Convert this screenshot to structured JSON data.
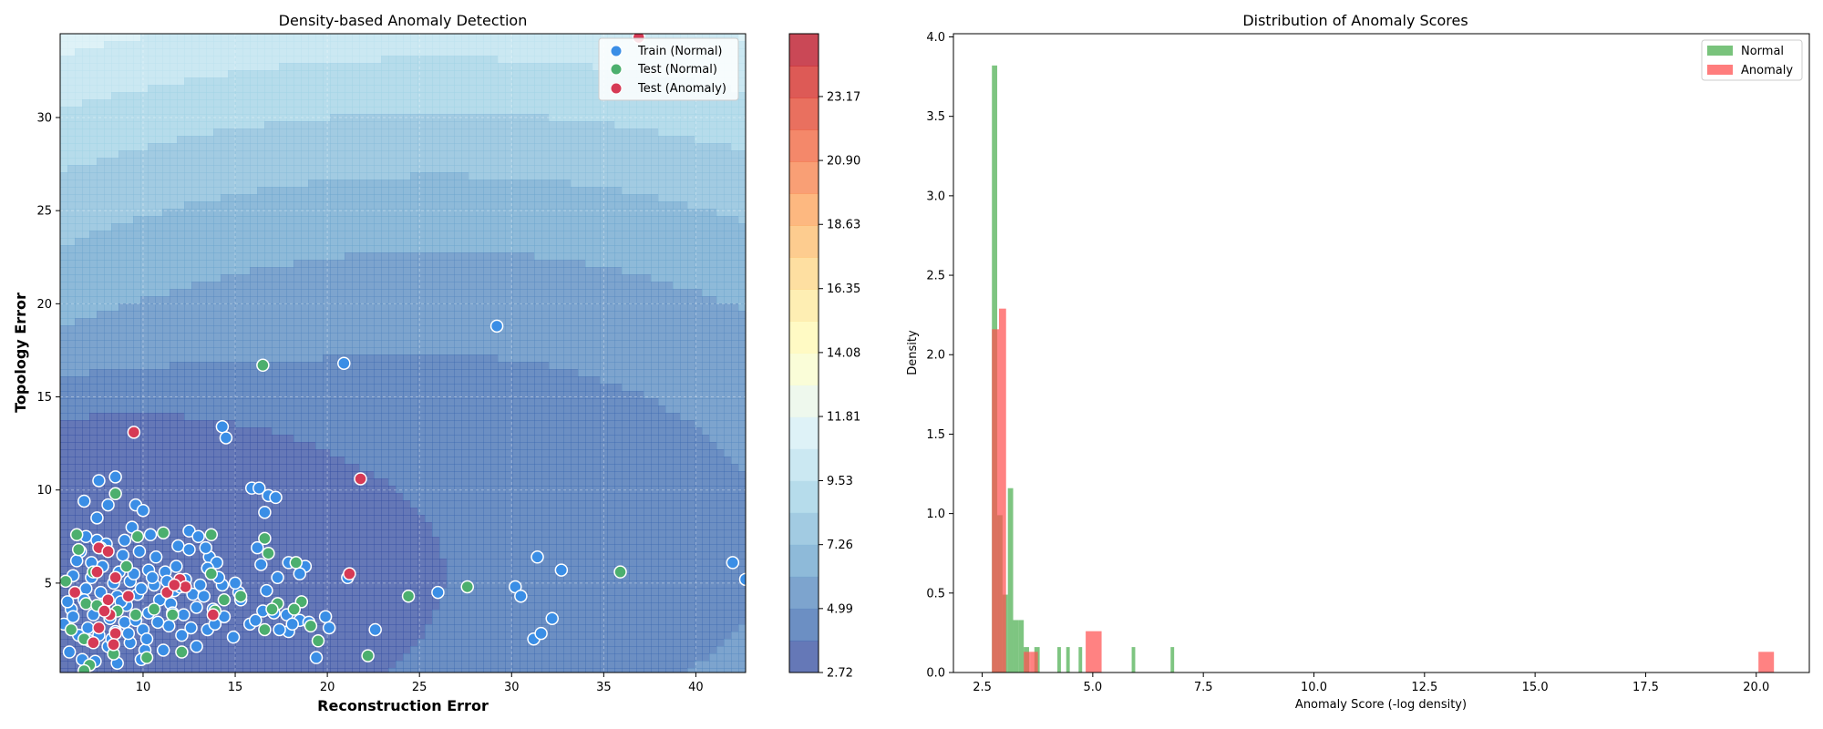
{
  "chart_data": [
    {
      "type": "scatter",
      "title": "Density-based Anomaly Detection",
      "xlabel": "Reconstruction Error",
      "ylabel": "Topology Error",
      "xlim": [
        5.5,
        42.7
      ],
      "ylim": [
        0.2,
        34.5
      ],
      "xticks": [
        10,
        15,
        20,
        25,
        30,
        35,
        40
      ],
      "yticks": [
        5,
        10,
        15,
        20,
        25,
        30
      ],
      "grid": true,
      "legend_position": "upper right",
      "background": "filled density contours (-log density)",
      "colorbar": {
        "ticks": [
          "2.72",
          "4.99",
          "7.26",
          "9.53",
          "11.81",
          "14.08",
          "16.35",
          "18.63",
          "20.90",
          "23.17"
        ],
        "range": [
          2.72,
          25.4
        ],
        "colormap": "RdYlBu reversed"
      },
      "series": [
        {
          "name": "Train (Normal)",
          "color": "#3a8ee6",
          "points": [
            [
              29.2,
              18.8
            ],
            [
              20.9,
              16.8
            ],
            [
              14.3,
              13.4
            ],
            [
              14.5,
              12.8
            ],
            [
              8.5,
              10.7
            ],
            [
              7.6,
              10.5
            ],
            [
              15.9,
              10.1
            ],
            [
              16.3,
              10.1
            ],
            [
              16.8,
              9.7
            ],
            [
              17.2,
              9.6
            ],
            [
              6.8,
              9.4
            ],
            [
              9.6,
              9.2
            ],
            [
              8.1,
              9.2
            ],
            [
              10.0,
              8.9
            ],
            [
              16.6,
              8.8
            ],
            [
              7.5,
              8.5
            ],
            [
              9.4,
              8.0
            ],
            [
              12.5,
              7.8
            ],
            [
              13.0,
              7.5
            ],
            [
              6.9,
              7.5
            ],
            [
              7.5,
              7.3
            ],
            [
              8.0,
              7.1
            ],
            [
              11.9,
              7.0
            ],
            [
              16.2,
              6.9
            ],
            [
              12.5,
              6.8
            ],
            [
              6.6,
              6.7
            ],
            [
              10.7,
              6.4
            ],
            [
              13.6,
              6.4
            ],
            [
              14.0,
              6.1
            ],
            [
              31.4,
              6.4
            ],
            [
              42.0,
              6.1
            ],
            [
              42.7,
              5.2
            ],
            [
              16.4,
              6.0
            ],
            [
              17.9,
              6.1
            ],
            [
              18.8,
              5.9
            ],
            [
              32.7,
              5.7
            ],
            [
              18.5,
              5.5
            ],
            [
              17.3,
              5.3
            ],
            [
              21.1,
              5.3
            ],
            [
              30.2,
              4.8
            ],
            [
              30.5,
              4.3
            ],
            [
              26.0,
              4.5
            ],
            [
              14.3,
              4.9
            ],
            [
              10.3,
              5.7
            ],
            [
              11.2,
              5.6
            ],
            [
              6.2,
              5.4
            ],
            [
              7.2,
              5.3
            ],
            [
              8.4,
              5.0
            ],
            [
              9.3,
              5.1
            ],
            [
              10.6,
              4.9
            ],
            [
              11.7,
              4.6
            ],
            [
              12.7,
              4.4
            ],
            [
              13.3,
              4.3
            ],
            [
              15.3,
              4.1
            ],
            [
              6.3,
              4.5
            ],
            [
              6.9,
              4.7
            ],
            [
              7.7,
              4.5
            ],
            [
              8.6,
              4.3
            ],
            [
              9.7,
              4.4
            ],
            [
              10.9,
              4.1
            ],
            [
              11.5,
              3.9
            ],
            [
              12.9,
              3.7
            ],
            [
              13.8,
              3.6
            ],
            [
              16.5,
              3.5
            ],
            [
              17.1,
              3.4
            ],
            [
              17.8,
              3.3
            ],
            [
              18.5,
              3.0
            ],
            [
              19.9,
              3.2
            ],
            [
              20.1,
              2.6
            ],
            [
              22.6,
              2.5
            ],
            [
              32.2,
              3.1
            ],
            [
              31.2,
              2.0
            ],
            [
              31.6,
              2.3
            ],
            [
              14.9,
              2.1
            ],
            [
              13.5,
              2.5
            ],
            [
              12.1,
              2.2
            ],
            [
              10.0,
              2.5
            ],
            [
              9.0,
              2.9
            ],
            [
              8.2,
              3.1
            ],
            [
              7.3,
              3.3
            ],
            [
              6.1,
              3.6
            ],
            [
              5.7,
              2.8
            ],
            [
              6.5,
              2.2
            ],
            [
              7.1,
              1.9
            ],
            [
              8.1,
              1.6
            ],
            [
              9.3,
              1.8
            ],
            [
              10.1,
              1.4
            ],
            [
              11.1,
              1.4
            ],
            [
              12.9,
              1.6
            ],
            [
              17.9,
              2.4
            ],
            [
              19.4,
              1.0
            ],
            [
              19.0,
              2.9
            ],
            [
              6.0,
              1.3
            ],
            [
              6.7,
              0.9
            ],
            [
              7.4,
              0.8
            ],
            [
              8.6,
              0.7
            ],
            [
              9.9,
              0.9
            ],
            [
              11.4,
              2.7
            ],
            [
              12.2,
              3.3
            ],
            [
              14.4,
              3.2
            ],
            [
              15.8,
              2.8
            ],
            [
              9.1,
              3.8
            ],
            [
              10.3,
              3.4
            ],
            [
              8.9,
              6.5
            ],
            [
              9.8,
              6.7
            ],
            [
              7.8,
              5.9
            ],
            [
              6.4,
              6.2
            ],
            [
              12.3,
              5.2
            ],
            [
              13.5,
              5.8
            ],
            [
              15.2,
              4.5
            ],
            [
              16.7,
              4.6
            ],
            [
              7.0,
              2.6
            ],
            [
              8.5,
              2.4
            ],
            [
              9.6,
              3.0
            ],
            [
              10.8,
              2.9
            ],
            [
              11.6,
              3.4
            ],
            [
              6.8,
              4.1
            ],
            [
              7.9,
              3.9
            ],
            [
              8.8,
              4.0
            ],
            [
              9.9,
              4.7
            ],
            [
              10.5,
              5.3
            ],
            [
              11.3,
              5.1
            ],
            [
              12.0,
              4.8
            ],
            [
              13.1,
              4.9
            ],
            [
              14.1,
              5.3
            ],
            [
              15.0,
              5.0
            ],
            [
              6.2,
              3.2
            ],
            [
              5.9,
              4.0
            ],
            [
              7.6,
              2.2
            ],
            [
              8.3,
              2.0
            ],
            [
              9.2,
              2.3
            ],
            [
              10.2,
              2.0
            ],
            [
              12.6,
              2.6
            ],
            [
              13.9,
              2.8
            ],
            [
              16.1,
              3.0
            ],
            [
              17.4,
              2.5
            ],
            [
              18.1,
              2.8
            ],
            [
              7.2,
              6.1
            ],
            [
              8.7,
              5.6
            ],
            [
              9.5,
              5.5
            ],
            [
              11.8,
              5.9
            ],
            [
              13.4,
              6.9
            ],
            [
              10.4,
              7.6
            ],
            [
              9.0,
              7.3
            ]
          ]
        },
        {
          "name": "Test (Normal)",
          "color": "#4caf6e",
          "points": [
            [
              16.5,
              16.7
            ],
            [
              8.5,
              9.8
            ],
            [
              11.1,
              7.7
            ],
            [
              13.7,
              7.6
            ],
            [
              6.4,
              7.6
            ],
            [
              9.7,
              7.5
            ],
            [
              16.6,
              7.4
            ],
            [
              7.7,
              6.9
            ],
            [
              16.8,
              6.6
            ],
            [
              18.3,
              6.1
            ],
            [
              9.1,
              5.9
            ],
            [
              7.3,
              5.6
            ],
            [
              13.7,
              5.5
            ],
            [
              35.9,
              5.6
            ],
            [
              27.6,
              4.8
            ],
            [
              24.4,
              4.3
            ],
            [
              15.3,
              4.3
            ],
            [
              14.4,
              4.1
            ],
            [
              17.3,
              3.9
            ],
            [
              18.6,
              4.0
            ],
            [
              17.0,
              3.6
            ],
            [
              18.2,
              3.6
            ],
            [
              6.9,
              3.9
            ],
            [
              7.5,
              3.8
            ],
            [
              8.6,
              3.5
            ],
            [
              9.6,
              3.3
            ],
            [
              10.6,
              3.6
            ],
            [
              11.6,
              3.3
            ],
            [
              13.9,
              3.5
            ],
            [
              16.6,
              2.5
            ],
            [
              19.1,
              2.7
            ],
            [
              19.5,
              1.9
            ],
            [
              22.2,
              1.1
            ],
            [
              12.1,
              1.3
            ],
            [
              10.2,
              1.0
            ],
            [
              8.4,
              1.2
            ],
            [
              7.1,
              0.6
            ],
            [
              6.8,
              0.3
            ],
            [
              6.1,
              2.5
            ],
            [
              6.8,
              2.0
            ],
            [
              5.8,
              5.1
            ],
            [
              6.5,
              6.8
            ]
          ]
        },
        {
          "name": "Test (Anomaly)",
          "color": "#d63a55",
          "points": [
            [
              36.9,
              34.3
            ],
            [
              9.5,
              13.1
            ],
            [
              21.8,
              10.6
            ],
            [
              21.2,
              5.5
            ],
            [
              7.6,
              6.9
            ],
            [
              8.1,
              6.7
            ],
            [
              7.5,
              5.6
            ],
            [
              8.5,
              5.3
            ],
            [
              12.0,
              5.2
            ],
            [
              12.3,
              4.8
            ],
            [
              11.3,
              4.5
            ],
            [
              9.2,
              4.3
            ],
            [
              8.1,
              4.1
            ],
            [
              6.3,
              4.5
            ],
            [
              8.2,
              3.3
            ],
            [
              7.6,
              2.6
            ],
            [
              8.5,
              2.3
            ],
            [
              7.3,
              1.8
            ],
            [
              8.4,
              1.7
            ],
            [
              7.9,
              3.5
            ],
            [
              13.8,
              3.3
            ],
            [
              11.7,
              4.9
            ]
          ]
        }
      ]
    },
    {
      "type": "histogram",
      "title": "Distribution of Anomaly Scores",
      "xlabel": "Anomaly Score (-log density)",
      "ylabel": "Density",
      "xlim": [
        1.85,
        21.2
      ],
      "ylim": [
        0,
        4.02
      ],
      "xticks": [
        "2.5",
        "5.0",
        "7.5",
        "10.0",
        "12.5",
        "15.0",
        "17.5",
        "20.0"
      ],
      "yticks": [
        "0.0",
        "0.5",
        "1.0",
        "1.5",
        "2.0",
        "2.5",
        "3.0",
        "3.5",
        "4.0"
      ],
      "legend_position": "upper right",
      "series": [
        {
          "name": "Normal",
          "color": "#4caf50",
          "bins": [
            [
              2.72,
              2.84,
              3.82
            ],
            [
              2.84,
              2.96,
              0.99
            ],
            [
              2.96,
              3.08,
              0.49
            ],
            [
              3.08,
              3.2,
              1.16
            ],
            [
              3.2,
              3.32,
              0.33
            ],
            [
              3.32,
              3.44,
              0.33
            ],
            [
              3.44,
              3.56,
              0.16
            ],
            [
              3.68,
              3.8,
              0.16
            ],
            [
              4.2,
              4.28,
              0.16
            ],
            [
              4.4,
              4.48,
              0.16
            ],
            [
              4.68,
              4.76,
              0.16
            ],
            [
              5.88,
              5.96,
              0.16
            ],
            [
              6.76,
              6.84,
              0.16
            ]
          ]
        },
        {
          "name": "Anomaly",
          "color": "#ff5252",
          "bins": [
            [
              2.72,
              2.88,
              2.16
            ],
            [
              2.88,
              3.04,
              2.29
            ],
            [
              3.04,
              3.2,
              0.0
            ],
            [
              3.44,
              3.6,
              0.13
            ],
            [
              3.6,
              3.76,
              0.13
            ],
            [
              4.84,
              5.2,
              0.26
            ],
            [
              20.05,
              20.4,
              0.13
            ]
          ]
        }
      ]
    }
  ]
}
